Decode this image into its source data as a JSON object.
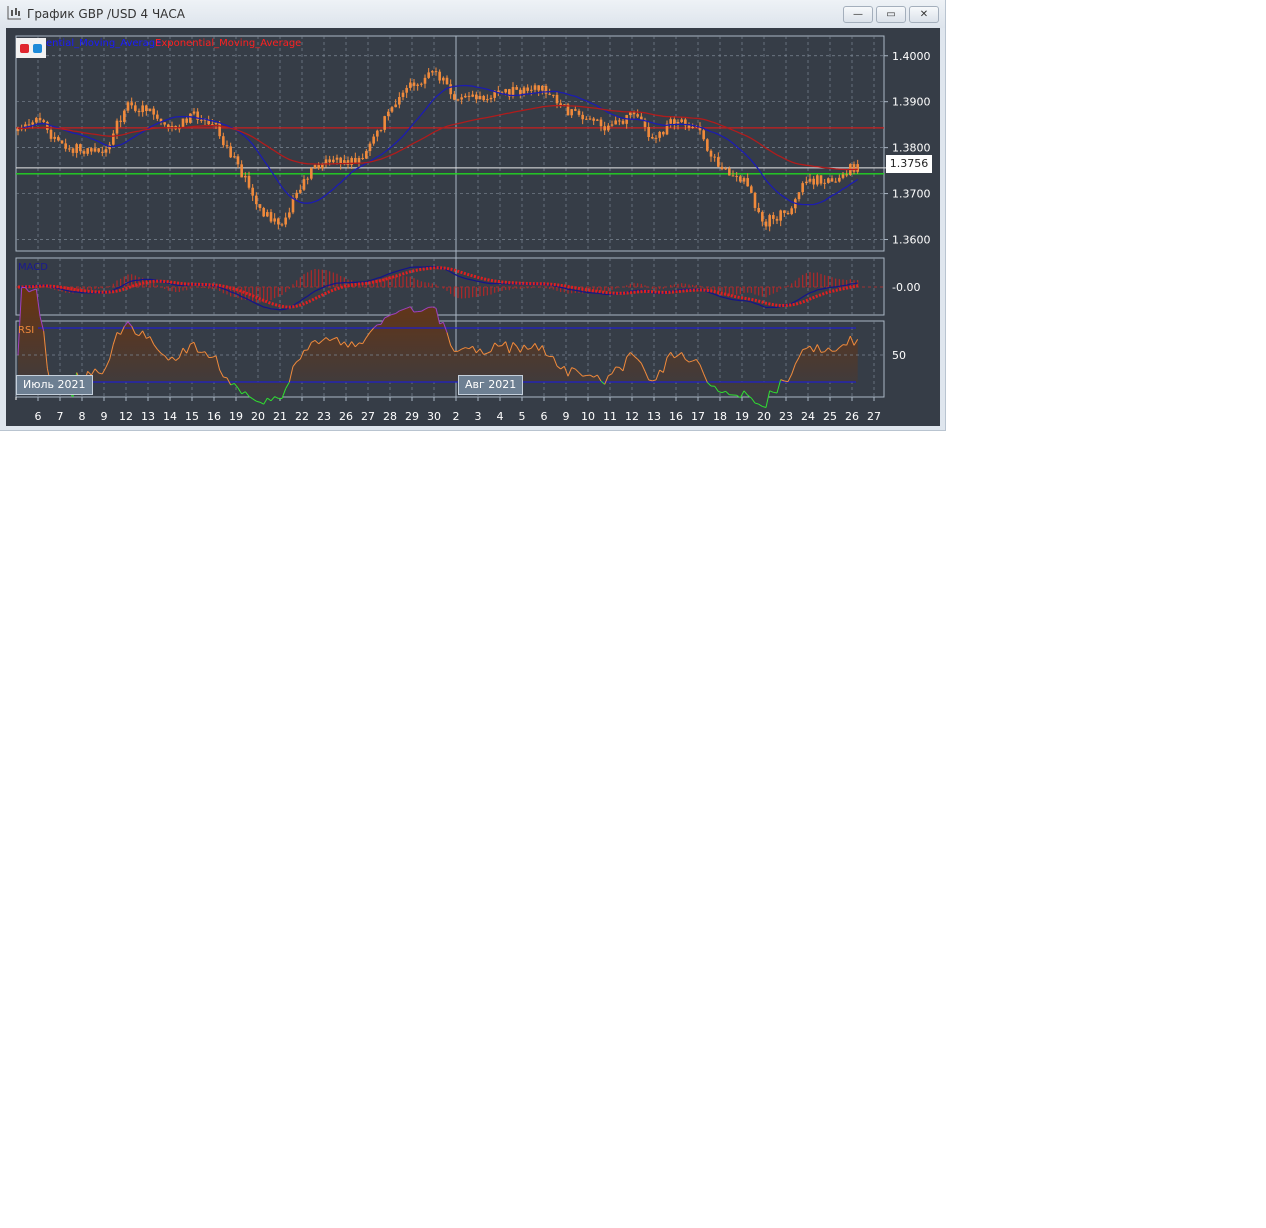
{
  "window": {
    "title": "График GBP /USD  4 ЧАСА",
    "buttons": {
      "minimize": "—",
      "restore": "▭",
      "close": "✕"
    }
  },
  "legend": {
    "items": [
      {
        "label": "ential_Moving_Average",
        "color": "#1a1aff"
      },
      {
        "label": "Exponential_Moving_Average",
        "color": "#ff2020"
      }
    ]
  },
  "colors": {
    "background": "#363d47",
    "candle": "#f08a3c",
    "sma": "#1c1cb0",
    "ema": "#b01c1c",
    "resistance": "#c81e1e",
    "support": "#22d422",
    "current": "#e8e8e8",
    "macd_line": "#14148a",
    "macd_signal": "#e02020",
    "rsi": "#f08a3c",
    "rsi_bounds": "#2020c8",
    "rsi_low": "#30e030",
    "rsi_high": "#a040c0"
  },
  "month_labels": [
    "Июль 2021",
    "Авг 2021"
  ],
  "chart_data": [
    {
      "type": "candlestick",
      "name": "GBP/USD 4H",
      "x_ticks": [
        "6",
        "7",
        "8",
        "9",
        "12",
        "13",
        "14",
        "15",
        "16",
        "19",
        "20",
        "21",
        "22",
        "23",
        "26",
        "27",
        "28",
        "29",
        "30",
        "2",
        "3",
        "4",
        "5",
        "6",
        "9",
        "10",
        "11",
        "12",
        "13",
        "16",
        "17",
        "18",
        "19",
        "20",
        "23",
        "24",
        "25",
        "26",
        "27"
      ],
      "daily_close_approx": [
        1.3836,
        1.3863,
        1.3803,
        1.3796,
        1.3791,
        1.389,
        1.388,
        1.3836,
        1.387,
        1.385,
        1.377,
        1.367,
        1.3627,
        1.3726,
        1.377,
        1.3766,
        1.379,
        1.389,
        1.3936,
        1.3969,
        1.3907,
        1.3907,
        1.392,
        1.3925,
        1.3925,
        1.388,
        1.3858,
        1.384,
        1.3876,
        1.3818,
        1.3863,
        1.3836,
        1.3757,
        1.3735,
        1.3637,
        1.3659,
        1.373,
        1.373,
        1.3756
      ],
      "y_ticks": [
        "1.4000",
        "1.3900",
        "1.3800",
        "1.3700",
        "1.3600"
      ],
      "ylim": [
        1.3575,
        1.4043
      ],
      "current_price": "1.3756",
      "horizontal_lines": {
        "resistance": 1.3843,
        "support": 1.3743
      },
      "indicators": [
        "Simple_Moving_Average",
        "Exponential_Moving_Average"
      ]
    },
    {
      "type": "line",
      "name": "MACD",
      "y_ticks": [
        "-0.00"
      ]
    },
    {
      "type": "line",
      "name": "RSI",
      "y_ticks": [
        "50"
      ],
      "bounds": [
        70,
        30
      ]
    }
  ]
}
